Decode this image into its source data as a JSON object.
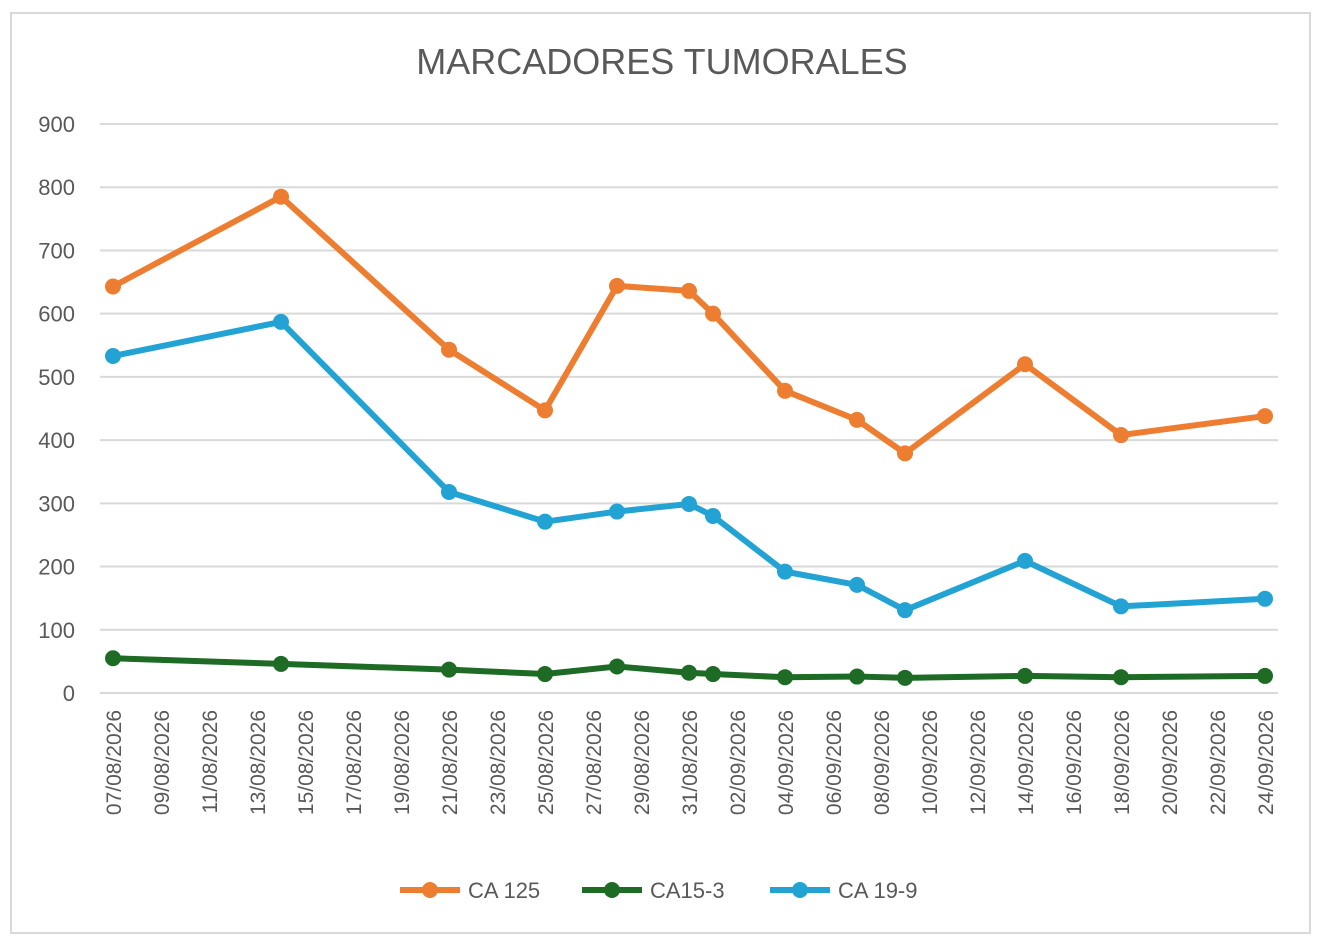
{
  "chart_data": {
    "type": "line",
    "title": "MARCADORES TUMORALES",
    "ylim": [
      0,
      900
    ],
    "yticks": [
      0,
      100,
      200,
      300,
      400,
      500,
      600,
      700,
      800,
      900
    ],
    "x_axis_type": "date",
    "x_tick_labels": [
      "07/08/2026",
      "09/08/2026",
      "11/08/2026",
      "13/08/2026",
      "15/08/2026",
      "17/08/2026",
      "19/08/2026",
      "21/08/2026",
      "23/08/2026",
      "25/08/2026",
      "27/08/2026",
      "29/08/2026",
      "31/08/2026",
      "02/09/2026",
      "04/09/2026",
      "06/09/2026",
      "08/09/2026",
      "10/09/2026",
      "12/09/2026",
      "14/09/2026",
      "16/09/2026",
      "18/09/2026",
      "20/09/2026",
      "22/09/2026",
      "24/09/2026"
    ],
    "x": [
      "2026-08-07",
      "2026-08-14",
      "2026-08-21",
      "2026-08-25",
      "2026-08-28",
      "2026-08-31",
      "2026-09-01",
      "2026-09-04",
      "2026-09-07",
      "2026-09-09",
      "2026-09-14",
      "2026-09-18",
      "2026-09-24"
    ],
    "grid": true,
    "legend_position": "bottom",
    "series": [
      {
        "name": "CA 125",
        "color": "#ED7D31",
        "values": [
          643,
          785,
          543,
          447,
          644,
          636,
          600,
          478,
          432,
          379,
          520,
          408,
          438
        ]
      },
      {
        "name": "CA15-3",
        "color": "#1E6B25",
        "values": [
          55,
          46,
          37,
          30,
          42,
          32,
          30,
          25,
          26,
          24,
          27,
          25,
          27
        ]
      },
      {
        "name": "CA 19-9",
        "color": "#22A3D4",
        "values": [
          533,
          587,
          318,
          271,
          287,
          299,
          280,
          192,
          171,
          131,
          209,
          137,
          149
        ]
      }
    ]
  }
}
